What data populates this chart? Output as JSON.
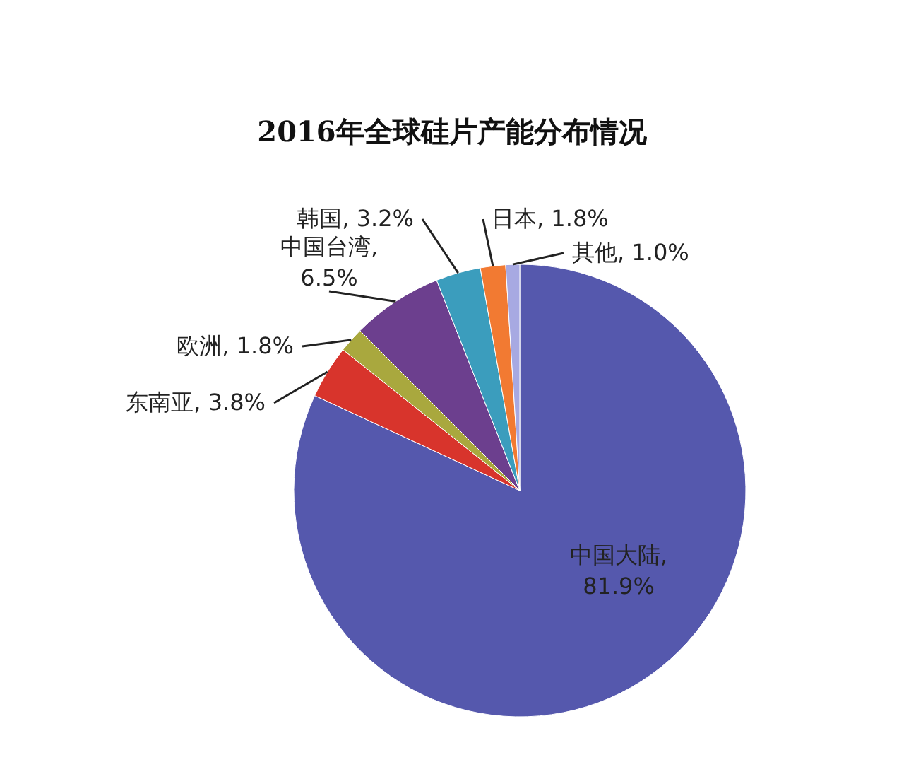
{
  "chart_data": {
    "type": "pie",
    "title": "2016年全球硅片产能分布情况",
    "categories": [
      "中国大陆",
      "东南亚",
      "欧洲",
      "中国台湾",
      "韩国",
      "日本",
      "其他"
    ],
    "values": [
      81.9,
      3.8,
      1.8,
      6.5,
      3.2,
      1.8,
      1.0
    ],
    "colors": [
      "#5558ad",
      "#d8342c",
      "#a9a83e",
      "#6c3f8e",
      "#3b9dbd",
      "#f27a32",
      "#a7a9e2"
    ],
    "value_labels": [
      ",\n81.9%",
      ", 3.8%",
      ", 1.8%",
      ",\n6.5%",
      ", 3.2%",
      ", 1.8%",
      ", 1.0%"
    ]
  }
}
